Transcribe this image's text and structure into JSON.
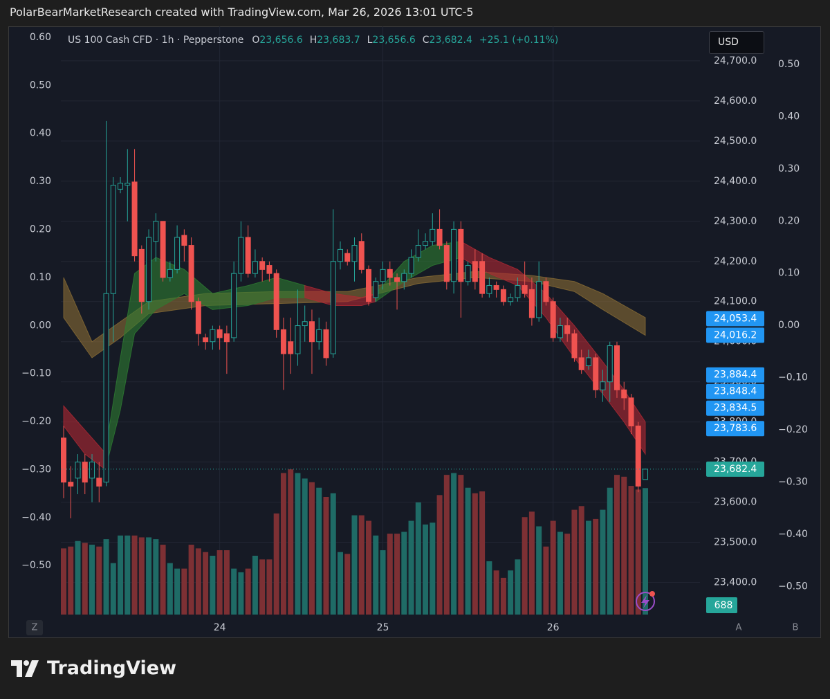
{
  "header": "PolarBearMarketResearch created with TradingView.com, Mar 26, 2026 13:01 UTC-5",
  "brand": "TradingView",
  "currency": "USD",
  "corner_buttons": [
    "Z",
    "A",
    "B"
  ],
  "chart_data": {
    "type": "candlestick",
    "legend": {
      "symbol": "US 100 Cash CFD · 1h · Pepperstone",
      "ohlc": [
        {
          "key": "O",
          "value": 23656.6,
          "label": "23,656.6"
        },
        {
          "key": "H",
          "value": 23683.7,
          "label": "23,683.7"
        },
        {
          "key": "L",
          "value": 23656.6,
          "label": "23,656.6"
        },
        {
          "key": "C",
          "value": 23682.4,
          "label": "23,682.4"
        }
      ],
      "change": "+25.1 (+0.11%)"
    },
    "up_color": "#26a69a",
    "down_color": "#ef5350",
    "volume_up_color": "#1f6b66",
    "volume_down_color": "#7d3034",
    "categories": [
      null,
      null,
      null,
      null,
      null,
      null,
      null,
      null,
      null,
      null,
      null,
      null,
      null,
      null,
      null,
      null,
      null,
      null,
      null,
      null,
      null,
      null,
      "24",
      null,
      null,
      null,
      null,
      null,
      null,
      null,
      null,
      null,
      null,
      null,
      null,
      null,
      null,
      null,
      null,
      null,
      null,
      null,
      null,
      null,
      null,
      "25",
      null,
      null,
      null,
      null,
      null,
      null,
      null,
      null,
      null,
      null,
      null,
      null,
      null,
      null,
      null,
      null,
      null,
      null,
      null,
      null,
      null,
      null,
      null,
      "26",
      null,
      null,
      null,
      null,
      null,
      null,
      null,
      null,
      null,
      null,
      null,
      null,
      null
    ],
    "open": [
      23760,
      23650,
      23660,
      23700,
      23660,
      23660,
      23650,
      24120,
      24380,
      24390,
      24398,
      24230,
      24100,
      24250,
      24300,
      24160,
      24180,
      24265,
      24240,
      24100,
      24010,
      24000,
      24030,
      24020,
      24010,
      24170,
      24260,
      24170,
      24200,
      24190,
      24170,
      24030,
      24000,
      23970,
      24040,
      24050,
      24000,
      24030,
      23970,
      24200,
      24220,
      24200,
      24250,
      24180,
      24110,
      24150,
      24180,
      24160,
      24150,
      24170,
      24210,
      24240,
      24250,
      24280,
      24240,
      24150,
      24280,
      24150,
      24200,
      24200,
      24120,
      24140,
      24130,
      24100,
      24110,
      24140,
      24130,
      24060,
      24150,
      24100,
      24010,
      24040,
      24020,
      23960,
      23940,
      23960,
      23880,
      23900,
      23990,
      23880,
      23860,
      23790,
      23656.6
    ],
    "high": [
      23790,
      23690,
      23720,
      23720,
      23720,
      23700,
      24550,
      24410,
      24410,
      24480,
      24480,
      24240,
      24280,
      24320,
      24300,
      24200,
      24290,
      24280,
      24260,
      24110,
      24020,
      24040,
      24040,
      24040,
      24200,
      24300,
      24290,
      24230,
      24210,
      24200,
      24180,
      24060,
      24060,
      24130,
      24090,
      24080,
      24060,
      24050,
      24330,
      24250,
      24230,
      24260,
      24270,
      24190,
      24160,
      24200,
      24200,
      24170,
      24180,
      24230,
      24280,
      24270,
      24320,
      24330,
      24250,
      24300,
      24300,
      24200,
      24230,
      24220,
      24160,
      24150,
      24140,
      24120,
      24160,
      24200,
      24160,
      24200,
      24160,
      24110,
      24060,
      24060,
      24030,
      23980,
      23980,
      23970,
      23930,
      24000,
      24000,
      23900,
      23870,
      23800,
      23683.7
    ],
    "low": [
      23610,
      23560,
      23620,
      23620,
      23600,
      23600,
      23640,
      24000,
      24370,
      24300,
      24200,
      24070,
      24080,
      24200,
      24150,
      24150,
      24170,
      24200,
      24080,
      23990,
      23980,
      23980,
      23980,
      23920,
      24000,
      24150,
      24160,
      24160,
      24150,
      24150,
      24010,
      23880,
      23920,
      23940,
      24000,
      23920,
      23980,
      23940,
      23960,
      24180,
      24190,
      24150,
      24170,
      24090,
      24100,
      24130,
      24140,
      24080,
      24130,
      24160,
      24200,
      24230,
      24240,
      24230,
      24130,
      24120,
      24060,
      24140,
      24130,
      24110,
      24110,
      24110,
      24090,
      24090,
      24100,
      24110,
      24040,
      24050,
      24090,
      24000,
      24000,
      24000,
      23950,
      23920,
      23930,
      23860,
      23850,
      23850,
      23860,
      23830,
      23770,
      23625,
      23656.6
    ],
    "close": [
      23650,
      23640,
      23700,
      23650,
      23700,
      23640,
      24120,
      24390,
      24395,
      24395,
      24214,
      24100,
      24260,
      24300,
      24160,
      24180,
      24260,
      24240,
      24100,
      24020,
      24000,
      24030,
      24010,
      24000,
      24170,
      24260,
      24170,
      24200,
      24180,
      24170,
      24030,
      23970,
      23970,
      24040,
      24050,
      24000,
      24030,
      23960,
      24200,
      24230,
      24200,
      24240,
      24180,
      24100,
      24150,
      24180,
      24160,
      24150,
      24170,
      24210,
      24240,
      24250,
      24280,
      24240,
      24150,
      24280,
      24150,
      24190,
      24150,
      24120,
      24140,
      24130,
      24100,
      24110,
      24140,
      24120,
      24060,
      24150,
      24100,
      24010,
      24040,
      24020,
      23960,
      23930,
      23960,
      23880,
      23900,
      23990,
      23880,
      23860,
      23790,
      23640,
      23682.4
    ],
    "volume": [
      360,
      370,
      400,
      390,
      380,
      370,
      410,
      280,
      430,
      430,
      430,
      420,
      420,
      410,
      380,
      280,
      250,
      250,
      380,
      360,
      340,
      320,
      350,
      350,
      250,
      230,
      250,
      320,
      300,
      300,
      550,
      770,
      790,
      770,
      740,
      720,
      690,
      640,
      660,
      340,
      330,
      540,
      540,
      510,
      430,
      350,
      440,
      440,
      450,
      510,
      610,
      490,
      500,
      650,
      760,
      770,
      760,
      690,
      660,
      670,
      290,
      240,
      200,
      240,
      300,
      530,
      560,
      480,
      370,
      510,
      450,
      440,
      570,
      590,
      510,
      520,
      570,
      690,
      760,
      750,
      700,
      680,
      688
    ],
    "volume_ylim": [
      0,
      3200
    ],
    "ylim": [
      23320,
      24786
    ],
    "yticks": [
      {
        "value": 23400,
        "label": "23,400.0"
      },
      {
        "value": 23500,
        "label": "23,500.0"
      },
      {
        "value": 23600,
        "label": "23,600.0"
      },
      {
        "value": 23700,
        "label": "23,700.0"
      },
      {
        "value": 23800,
        "label": "23,800.0"
      },
      {
        "value": 23900,
        "label": "23,900.0"
      },
      {
        "value": 24000,
        "label": "24,000.0"
      },
      {
        "value": 24100,
        "label": "24,100.0"
      },
      {
        "value": 24200,
        "label": "24,200.0"
      },
      {
        "value": 24300,
        "label": "24,300.0"
      },
      {
        "value": 24400,
        "label": "24,400.0"
      },
      {
        "value": 24500,
        "label": "24,500.0"
      },
      {
        "value": 24600,
        "label": "24,600.0"
      },
      {
        "value": 24700,
        "label": "24,700.0"
      }
    ],
    "y2lim": [
      -0.602,
      0.623
    ],
    "y2ticks": [
      {
        "value": 0.6,
        "label": "0.60"
      },
      {
        "value": 0.5,
        "label": "0.50"
      },
      {
        "value": 0.4,
        "label": "0.40"
      },
      {
        "value": 0.3,
        "label": "0.30"
      },
      {
        "value": 0.2,
        "label": "0.20"
      },
      {
        "value": 0.1,
        "label": "0.10"
      },
      {
        "value": 0,
        "label": "0.00"
      },
      {
        "value": -0.1,
        "label": "−0.10"
      },
      {
        "value": -0.2,
        "label": "−0.20"
      },
      {
        "value": -0.3,
        "label": "−0.30"
      },
      {
        "value": -0.4,
        "label": "−0.40"
      },
      {
        "value": -0.5,
        "label": "−0.50"
      }
    ],
    "y3lim": [
      -0.554,
      0.573
    ],
    "y3ticks": [
      {
        "value": 0.5,
        "label": "0.50"
      },
      {
        "value": 0.4,
        "label": "0.40"
      },
      {
        "value": 0.3,
        "label": "0.30"
      },
      {
        "value": 0.2,
        "label": "0.20"
      },
      {
        "value": 0.1,
        "label": "0.10"
      },
      {
        "value": 0,
        "label": "0.00"
      },
      {
        "value": -0.1,
        "label": "−0.10"
      },
      {
        "value": -0.2,
        "label": "−0.20"
      },
      {
        "value": -0.3,
        "label": "−0.30"
      },
      {
        "value": -0.4,
        "label": "−0.40"
      },
      {
        "value": -0.5,
        "label": "−0.50"
      }
    ],
    "grid": true,
    "price_labels": [
      {
        "value": 24053.4,
        "label": "24,053.4",
        "color": "#2196f3"
      },
      {
        "value": 24016.2,
        "label": "24,016.2",
        "color": "#2196f3"
      },
      {
        "value": 23884.4,
        "label": "23,884.4",
        "color": "#2196f3"
      },
      {
        "value": 23848.4,
        "label": "23,848.4",
        "color": "#2196f3"
      },
      {
        "value": 23834.5,
        "label": "23,834.5",
        "color": "#2196f3"
      },
      {
        "value": 23783.6,
        "label": "23,783.6",
        "color": "#2196f3"
      },
      {
        "value": 23682.4,
        "label": "23,682.4",
        "color": "#26a69a"
      }
    ],
    "ribbons": [
      {
        "color": "#8a6d35",
        "x": [
          0,
          4,
          8,
          12,
          20,
          30,
          40,
          50,
          58,
          66,
          72,
          76,
          82
        ],
        "upper": [
          24160,
          24000,
          24050,
          24100,
          24120,
          24125,
          24125,
          24160,
          24175,
          24165,
          24150,
          24120,
          24060
        ],
        "lower": [
          24060,
          23960,
          24010,
          24070,
          24090,
          24095,
          24100,
          24145,
          24160,
          24150,
          24125,
          24080,
          24016
        ]
      },
      {
        "color": "#b22833",
        "x": [
          0,
          3,
          6
        ],
        "upper": [
          23840,
          23780,
          23720
        ],
        "lower": [
          23790,
          23720,
          23680
        ]
      },
      {
        "color": "#2e7d32",
        "x": [
          6,
          8,
          10,
          13,
          17,
          21,
          26,
          30,
          34
        ],
        "upper": [
          23740,
          23960,
          24170,
          24210,
          24180,
          24120,
          24140,
          24160,
          24140
        ],
        "lower": [
          23690,
          23830,
          24020,
          24080,
          24120,
          24080,
          24090,
          24110,
          24110
        ]
      },
      {
        "color": "#b22833",
        "x": [
          34,
          38,
          42,
          44
        ],
        "upper": [
          24140,
          24120,
          24110,
          24120
        ],
        "lower": [
          24110,
          24090,
          24090,
          24100
        ]
      },
      {
        "color": "#2e7d32",
        "x": [
          44,
          48,
          52,
          56
        ],
        "upper": [
          24120,
          24200,
          24240,
          24250
        ],
        "lower": [
          24100,
          24150,
          24190,
          24210
        ]
      },
      {
        "color": "#b22833",
        "x": [
          56,
          60,
          64,
          68,
          72,
          76,
          79,
          82
        ],
        "upper": [
          24250,
          24210,
          24180,
          24120,
          24040,
          23950,
          23880,
          23800
        ],
        "lower": [
          24210,
          24170,
          24140,
          24060,
          23960,
          23870,
          23800,
          23720
        ]
      }
    ]
  }
}
